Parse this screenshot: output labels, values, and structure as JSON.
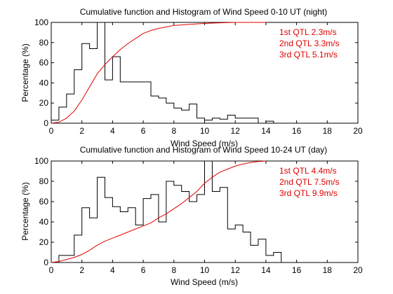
{
  "chart_data": [
    {
      "type": "line",
      "title": "Cumulative function and Histogram of Wind Speed 0-10 UT (night)",
      "xlabel": "Wind Speed (m/s)",
      "ylabel": "Percentage (%)",
      "xlim": [
        0,
        20
      ],
      "ylim": [
        0,
        100
      ],
      "xticks": [
        "0",
        "2",
        "4",
        "6",
        "8",
        "10",
        "12",
        "14",
        "16",
        "18",
        "20"
      ],
      "yticks": [
        "0",
        "20",
        "40",
        "60",
        "80",
        "100"
      ],
      "grid": false,
      "annotations": [
        "1st QTL 2.3m/s",
        "2nd QTL 3.3m/s",
        "3rd QTL 5.1m/s"
      ],
      "histogram": {
        "color": "#000000",
        "bin_width": 0.5,
        "bin_edges_start": 0,
        "values": [
          3,
          16,
          29,
          53,
          79,
          74,
          100,
          43,
          66,
          41,
          41,
          41,
          41,
          27,
          25,
          20,
          15,
          13,
          19,
          5,
          3,
          5,
          4,
          8,
          5,
          5,
          5,
          0,
          2,
          0
        ]
      },
      "cumulative": {
        "color": "#e00000",
        "x": [
          0,
          0.5,
          1,
          1.5,
          2,
          2.5,
          3,
          3.5,
          4,
          4.5,
          5,
          5.5,
          6,
          6.5,
          7,
          7.5,
          8,
          8.5,
          9,
          9.5,
          10,
          10.5,
          11,
          12,
          14
        ],
        "y": [
          0,
          1,
          5,
          12,
          23,
          36,
          49,
          58,
          66,
          73,
          79,
          84,
          89,
          92,
          94,
          95.5,
          97,
          97.5,
          98,
          98.5,
          99,
          99.3,
          99.6,
          100,
          100
        ]
      }
    },
    {
      "type": "line",
      "title": "Cumulative function and Histogram of Wind Speed 10-24 UT (day)",
      "xlabel": "Wind Speed (m/s)",
      "ylabel": "Percentage (%)",
      "xlim": [
        0,
        20
      ],
      "ylim": [
        0,
        100
      ],
      "xticks": [
        "0",
        "2",
        "4",
        "6",
        "8",
        "10",
        "12",
        "14",
        "16",
        "18",
        "20"
      ],
      "yticks": [
        "0",
        "20",
        "40",
        "60",
        "80",
        "100"
      ],
      "grid": false,
      "annotations": [
        "1st QTL 4.4m/s",
        "2nd QTL 7.5m/s",
        "3rd QTL 9.9m/s"
      ],
      "histogram": {
        "color": "#000000",
        "bin_width": 0.5,
        "bin_edges_start": 0,
        "values": [
          0,
          7,
          7,
          27,
          54,
          44,
          84,
          64,
          55,
          50,
          54,
          37,
          63,
          67,
          40,
          80,
          76,
          70,
          60,
          67,
          100,
          70,
          74,
          33,
          37,
          30,
          17,
          23,
          7,
          10
        ]
      },
      "cumulative": {
        "color": "#e00000",
        "x": [
          0,
          0.5,
          1,
          1.5,
          2,
          2.5,
          3,
          3.5,
          4,
          4.5,
          5,
          5.5,
          6,
          6.5,
          7,
          7.5,
          8,
          8.5,
          9,
          9.5,
          10,
          10.5,
          11,
          11.5,
          12,
          12.5,
          13,
          13.5,
          14
        ],
        "y": [
          0,
          1,
          3,
          5,
          8,
          12,
          17,
          21,
          24,
          27,
          30,
          33,
          36,
          39,
          44,
          48,
          53,
          58,
          64,
          70,
          78,
          84,
          89,
          92,
          95,
          97,
          98.5,
          99.5,
          100
        ]
      }
    }
  ]
}
